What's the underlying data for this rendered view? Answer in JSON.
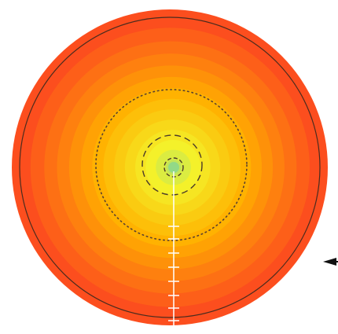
{
  "diagram": {
    "type": "radial-contour",
    "band_count": 14,
    "colors": {
      "background": "#ffffff",
      "center": "#8fd88a",
      "inner": "#f4f22a",
      "middle": "#ffb000",
      "outer": "#fc4e1e",
      "boundary": "#4a2c1e",
      "dashed_contour": "#4a3a2a",
      "dotted_contour": "#5a4030",
      "probe_line": "#ffffff",
      "arrow": "#111111"
    },
    "contours": [
      {
        "name": "inner-dashed-contour",
        "style": "dashed"
      },
      {
        "name": "middle-dashed-contour",
        "style": "dashed"
      },
      {
        "name": "outer-dotted-contour",
        "style": "dotted"
      }
    ],
    "icons": {
      "center_marker": "circle-marker-icon",
      "probe": "measurement-line-icon",
      "pointer": "arrow-left-icon"
    }
  }
}
